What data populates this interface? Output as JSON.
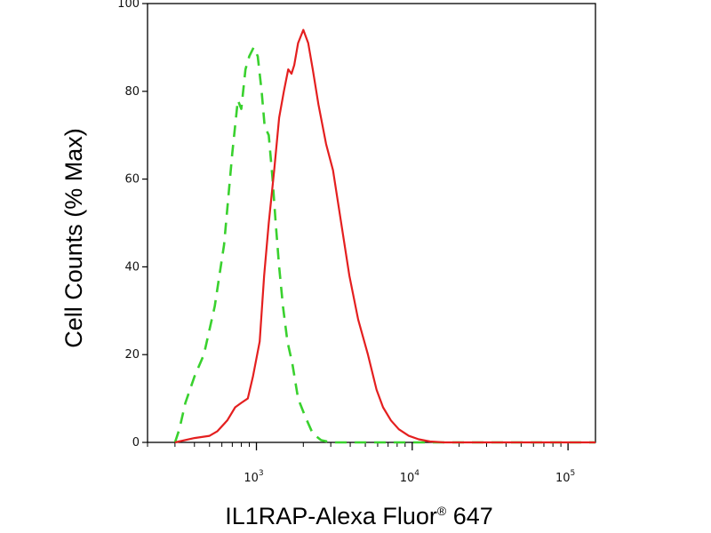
{
  "chart_data": {
    "type": "line",
    "xlabel": "IL1RAP-Alexa Fluor",
    "xlabel_superscript": "®",
    "xlabel_suffix": " 647",
    "ylabel": "Cell Counts (% Max)",
    "x_scale": "log",
    "xlim": [
      200,
      150000
    ],
    "ylim": [
      0,
      100
    ],
    "yticks": [
      0,
      20,
      40,
      60,
      80,
      100
    ],
    "xticks": [
      {
        "value": 1000,
        "base": "10",
        "exp": "3"
      },
      {
        "value": 10000,
        "base": "10",
        "exp": "4"
      },
      {
        "value": 100000,
        "base": "10",
        "exp": "5"
      }
    ],
    "grid": false,
    "series": [
      {
        "style": "dashed",
        "color": "#39d12e",
        "points": [
          [
            300,
            0
          ],
          [
            320,
            3
          ],
          [
            350,
            9
          ],
          [
            400,
            15
          ],
          [
            460,
            20
          ],
          [
            540,
            31
          ],
          [
            620,
            45
          ],
          [
            700,
            66
          ],
          [
            760,
            78
          ],
          [
            800,
            76
          ],
          [
            850,
            85
          ],
          [
            900,
            88
          ],
          [
            960,
            90
          ],
          [
            1020,
            88
          ],
          [
            1080,
            80
          ],
          [
            1130,
            72
          ],
          [
            1200,
            70
          ],
          [
            1270,
            60
          ],
          [
            1330,
            50
          ],
          [
            1400,
            40
          ],
          [
            1480,
            31
          ],
          [
            1580,
            23
          ],
          [
            1700,
            18
          ],
          [
            1850,
            10
          ],
          [
            2050,
            6
          ],
          [
            2300,
            2
          ],
          [
            2600,
            0.5
          ],
          [
            3000,
            0
          ],
          [
            150000,
            0
          ]
        ]
      },
      {
        "style": "solid",
        "color": "#e41f1f",
        "points": [
          [
            300,
            0
          ],
          [
            400,
            1
          ],
          [
            500,
            1.5
          ],
          [
            560,
            2.5
          ],
          [
            650,
            5
          ],
          [
            730,
            8
          ],
          [
            800,
            9
          ],
          [
            880,
            10
          ],
          [
            950,
            15
          ],
          [
            1050,
            23
          ],
          [
            1120,
            38
          ],
          [
            1200,
            50
          ],
          [
            1300,
            62
          ],
          [
            1400,
            74
          ],
          [
            1500,
            80
          ],
          [
            1600,
            85
          ],
          [
            1680,
            84
          ],
          [
            1750,
            86
          ],
          [
            1850,
            91
          ],
          [
            2000,
            94
          ],
          [
            2150,
            91
          ],
          [
            2300,
            85
          ],
          [
            2500,
            77
          ],
          [
            2800,
            68
          ],
          [
            3100,
            62
          ],
          [
            3500,
            50
          ],
          [
            3950,
            38
          ],
          [
            4500,
            28
          ],
          [
            5200,
            20
          ],
          [
            5900,
            12
          ],
          [
            6500,
            8
          ],
          [
            7300,
            5
          ],
          [
            8200,
            3
          ],
          [
            9500,
            1.5
          ],
          [
            11000,
            0.7
          ],
          [
            13000,
            0.2
          ],
          [
            16000,
            0
          ],
          [
            150000,
            0
          ]
        ]
      }
    ]
  }
}
